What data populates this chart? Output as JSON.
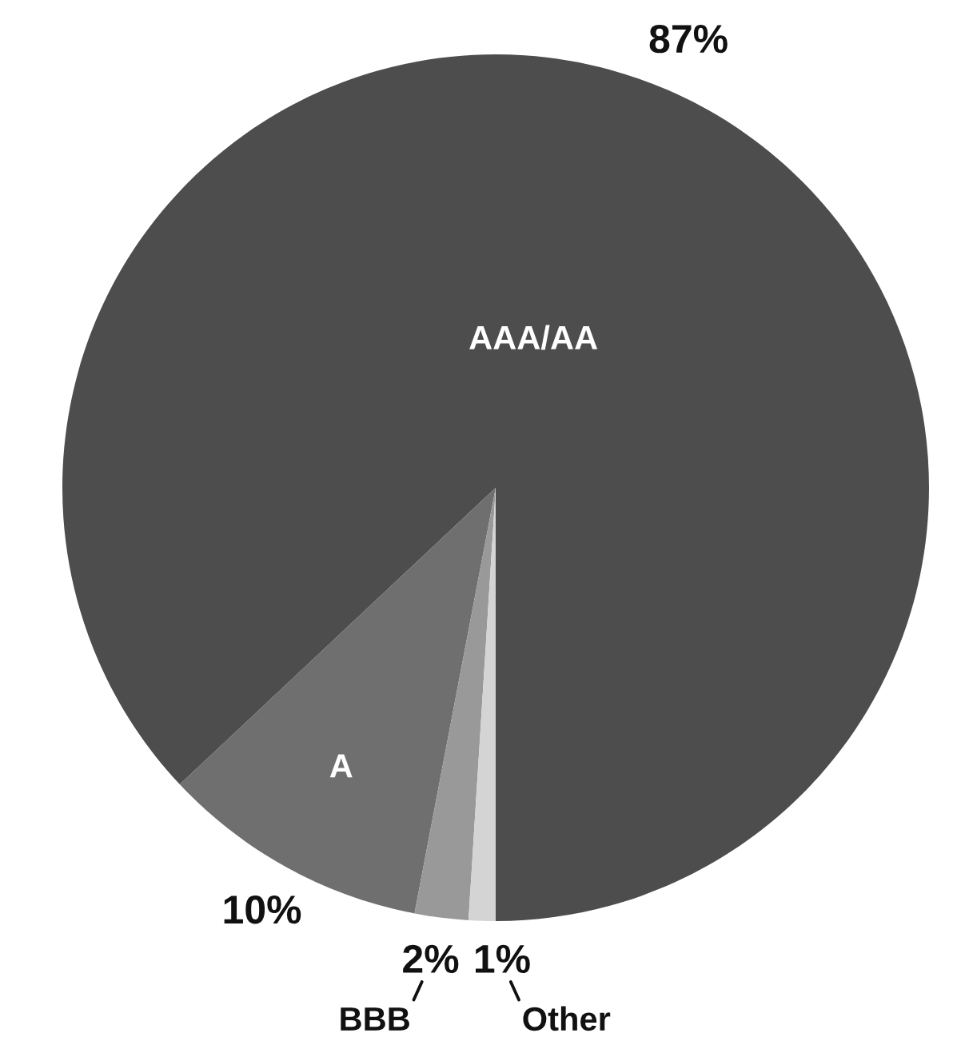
{
  "chart_data": {
    "type": "pie",
    "categories": [
      "AAA/AA",
      "A",
      "BBB",
      "Other"
    ],
    "values": [
      87,
      10,
      2,
      1
    ],
    "value_labels": [
      "87%",
      "10%",
      "2%",
      "1%"
    ],
    "colors": [
      "#4d4d4d",
      "#6f6f6f",
      "#999999",
      "#d4d4d4"
    ]
  }
}
